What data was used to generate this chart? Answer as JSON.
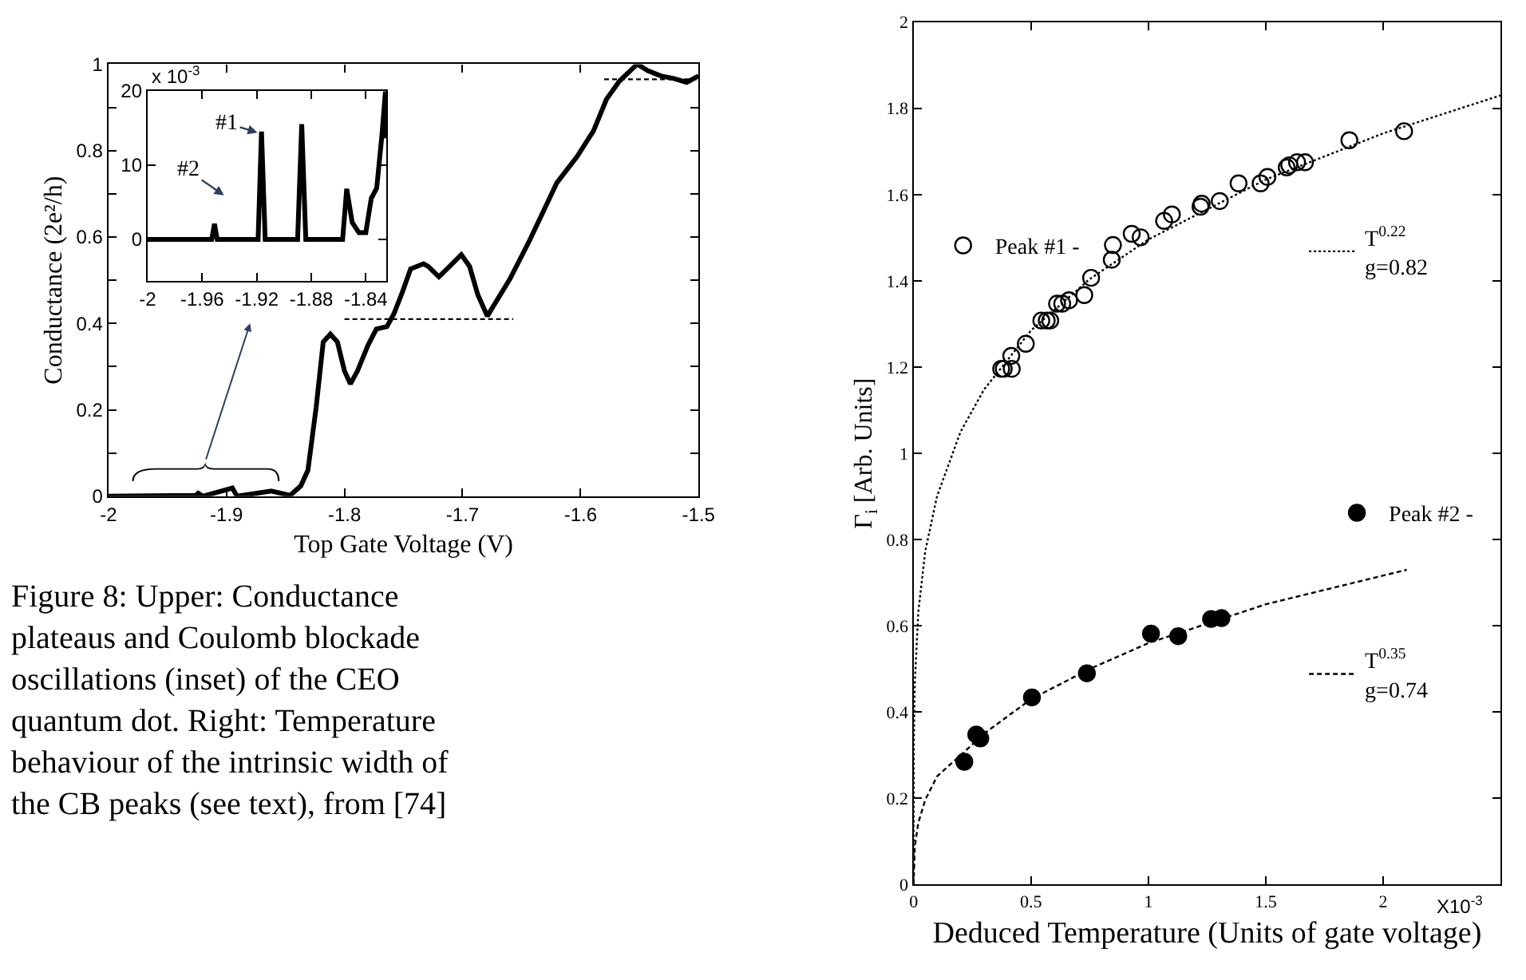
{
  "chart_data": [
    {
      "type": "line",
      "xlabel": "Top Gate Voltage (V)",
      "ylabel": "Conductance (2e²/h)",
      "xlim": [
        -2,
        -1.5
      ],
      "xticks": [
        -2,
        -1.9,
        -1.8,
        -1.7,
        -1.6,
        -1.5
      ],
      "ylim": [
        0,
        1
      ],
      "yticks": [
        0,
        {
          "value": 0.1,
          "label": null
        },
        0.2,
        {
          "value": 0.3,
          "label": null
        },
        0.4,
        {
          "value": 0.5,
          "label": null
        },
        0.6,
        {
          "value": 0.7,
          "label": null
        },
        0.8,
        {
          "value": 0.9,
          "label": null
        },
        1
      ],
      "annotations": [
        "Figure 8: Upper: Conductance plateaus and Coulomb blockade oscillations (inset) of the CEO quantum dot. Right: Temperature behaviour of the intrinsic width of the CB peaks (see text), from [74]"
      ],
      "series": [
        {
          "color": "#000000",
          "line_style": "solid",
          "x": [
            -2,
            -1.926,
            -1.924,
            -1.92,
            -1.895,
            -1.891,
            -1.862,
            -1.846,
            -1.837,
            -1.831,
            -1.824,
            -1.818,
            -1.812,
            -1.806,
            -1.8,
            -1.795,
            -1.789,
            -1.78,
            -1.773,
            -1.764,
            -1.758,
            -1.751,
            -1.744,
            -1.733,
            -1.729,
            -1.72,
            -1.711,
            -1.701,
            -1.694,
            -1.687,
            -1.679,
            -1.671,
            -1.66,
            -1.643,
            -1.62,
            -1.603,
            -1.589,
            -1.578,
            -1.567,
            -1.552,
            -1.543,
            -1.532,
            -1.521,
            -1.51,
            -1.5
          ],
          "values": [
            0,
            0.002,
            0.007,
            0,
            0.019,
            0,
            0.012,
            0.002,
            0.024,
            0.06,
            0.206,
            0.357,
            0.375,
            0.357,
            0.29,
            0.26,
            0.29,
            0.35,
            0.387,
            0.393,
            0.423,
            0.472,
            0.526,
            0.538,
            0.532,
            0.508,
            0.532,
            0.559,
            0.532,
            0.466,
            0.417,
            0.453,
            0.502,
            0.593,
            0.726,
            0.786,
            0.846,
            0.919,
            0.961,
            1.0,
            0.985,
            0.973,
            0.967,
            0.958,
            0.973
          ]
        },
        {
          "color": "#000000",
          "line_style": "dashed",
          "x": [
            -1.8,
            -1.657
          ],
          "values": [
            0.41,
            0.41
          ]
        },
        {
          "color": "#000000",
          "line_style": "dashed",
          "x": [
            -1.58,
            -1.5
          ],
          "values": [
            0.965,
            0.965
          ]
        }
      ]
    },
    {
      "type": "line",
      "xlim": [
        -2,
        -1.825
      ],
      "xticks": [
        -2,
        -1.96,
        -1.92,
        -1.88,
        -1.84
      ],
      "ylim": [
        -5.6,
        20
      ],
      "yticks": [
        0,
        10,
        20
      ],
      "annotations": [
        "x 10$^{-3}$",
        "#1",
        "#2"
      ],
      "series": [
        {
          "color": "#000000",
          "line_style": "solid",
          "x": [
            -2,
            -1.953,
            -1.951,
            -1.949,
            -1.919,
            -1.9165,
            -1.9138,
            -1.89,
            -1.887,
            -1.884,
            -1.857,
            -1.854,
            -1.85,
            -1.845,
            -1.84,
            -1.836,
            -1.832,
            -1.828,
            -1.8256,
            -1.825
          ],
          "values": [
            0,
            0,
            2.1,
            0,
            0,
            14.5,
            0,
            0,
            15.5,
            0,
            0,
            6.8,
            2.3,
            0.9,
            0.9,
            5.5,
            6.9,
            14.3,
            19.9,
            13.6
          ]
        }
      ]
    },
    {
      "type": "scatter",
      "xlabel": "Deduced Temperature (Units of gate voltage)",
      "ylabel": "Γ$_{i}$ [Arb. Units]",
      "xlim": [
        0,
        2.5
      ],
      "xticks": [
        0,
        0.5,
        1,
        1.5,
        2
      ],
      "ylim": [
        0,
        2
      ],
      "yticks": [
        0,
        0.2,
        0.4,
        0.6,
        0.8,
        1,
        1.2,
        1.4,
        1.6,
        1.8,
        2
      ],
      "annotations": [
        "X10$^{-3}$"
      ],
      "legend": "right",
      "series": [
        {
          "name": "Peak #1 -",
          "color": "#000000",
          "marker": "circle-open",
          "x": [
            0.373,
            0.384,
            0.418,
            0.416,
            0.478,
            0.544,
            0.567,
            0.582,
            0.611,
            0.633,
            0.662,
            0.727,
            0.756,
            0.844,
            0.849,
            0.929,
            0.967,
            1.067,
            1.1,
            1.222,
            1.227,
            1.304,
            1.384,
            1.478,
            1.507,
            1.589,
            1.6,
            1.633,
            1.667,
            1.856,
            2.089
          ],
          "values": [
            1.196,
            1.196,
            1.196,
            1.226,
            1.254,
            1.308,
            1.308,
            1.308,
            1.347,
            1.347,
            1.355,
            1.367,
            1.407,
            1.449,
            1.483,
            1.509,
            1.501,
            1.539,
            1.554,
            1.572,
            1.579,
            1.585,
            1.626,
            1.626,
            1.641,
            1.663,
            1.668,
            1.675,
            1.675,
            1.726,
            1.747
          ]
        },
        {
          "name": "Peak #2 -",
          "color": "#000000",
          "marker": "circle",
          "x": [
            0.216,
            0.267,
            0.284,
            0.504,
            0.738,
            1.011,
            1.127,
            1.267,
            1.311
          ],
          "values": [
            0.285,
            0.348,
            0.339,
            0.434,
            0.49,
            0.582,
            0.576,
            0.616,
            0.618
          ]
        },
        {
          "name": "T$^{0.22}$\ng=0.82",
          "type": "line",
          "color": "#000000",
          "line_style": "dotted",
          "x": [
            0,
            0.001,
            0.005,
            0.02,
            0.05,
            0.1,
            0.2,
            0.3,
            0.5,
            0.75,
            1,
            1.5,
            2,
            2.5
          ],
          "values": [
            0,
            0.327,
            0.466,
            0.632,
            0.774,
            0.901,
            1.05,
            1.148,
            1.285,
            1.404,
            1.496,
            1.635,
            1.742,
            1.83
          ]
        },
        {
          "name": "T$^{0.35}$\ng=0.74",
          "type": "line",
          "color": "#000000",
          "line_style": "dashed",
          "x": [
            0,
            0.005,
            0.02,
            0.05,
            0.1,
            0.2,
            0.3,
            0.5,
            0.75,
            1,
            1.5,
            2.1
          ],
          "values": [
            0,
            0.088,
            0.143,
            0.197,
            0.251,
            0.3,
            0.35,
            0.43,
            0.5,
            0.56,
            0.65,
            0.73
          ]
        }
      ]
    }
  ]
}
